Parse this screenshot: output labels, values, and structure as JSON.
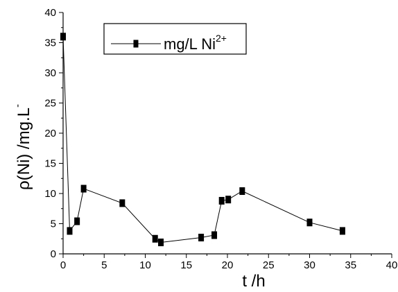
{
  "chart_data": {
    "type": "line",
    "xlabel": "t /h",
    "ylabel": "ρ(Ni) /mg.L",
    "ylabel_superscript": "-",
    "xlim": [
      0,
      40
    ],
    "ylim": [
      0,
      40
    ],
    "x_ticks": [
      "0",
      "5",
      "10",
      "15",
      "20",
      "25",
      "30",
      "35",
      "40"
    ],
    "y_ticks": [
      "0",
      "5",
      "10",
      "15",
      "20",
      "25",
      "30",
      "35",
      "40"
    ],
    "grid": false,
    "legend_position": "top-center",
    "series": [
      {
        "name": "mg/L Ni",
        "name_superscript": "2+",
        "color": "#000000",
        "marker": "square",
        "x": [
          0,
          0.8,
          1.7,
          2.5,
          7.2,
          11.2,
          11.9,
          16.8,
          18.4,
          19.3,
          20.1,
          21.8,
          30,
          34
        ],
        "y": [
          36,
          3.8,
          5.4,
          10.8,
          8.4,
          2.5,
          1.9,
          2.7,
          3.1,
          8.8,
          9.0,
          10.4,
          5.2,
          3.8
        ]
      }
    ]
  }
}
